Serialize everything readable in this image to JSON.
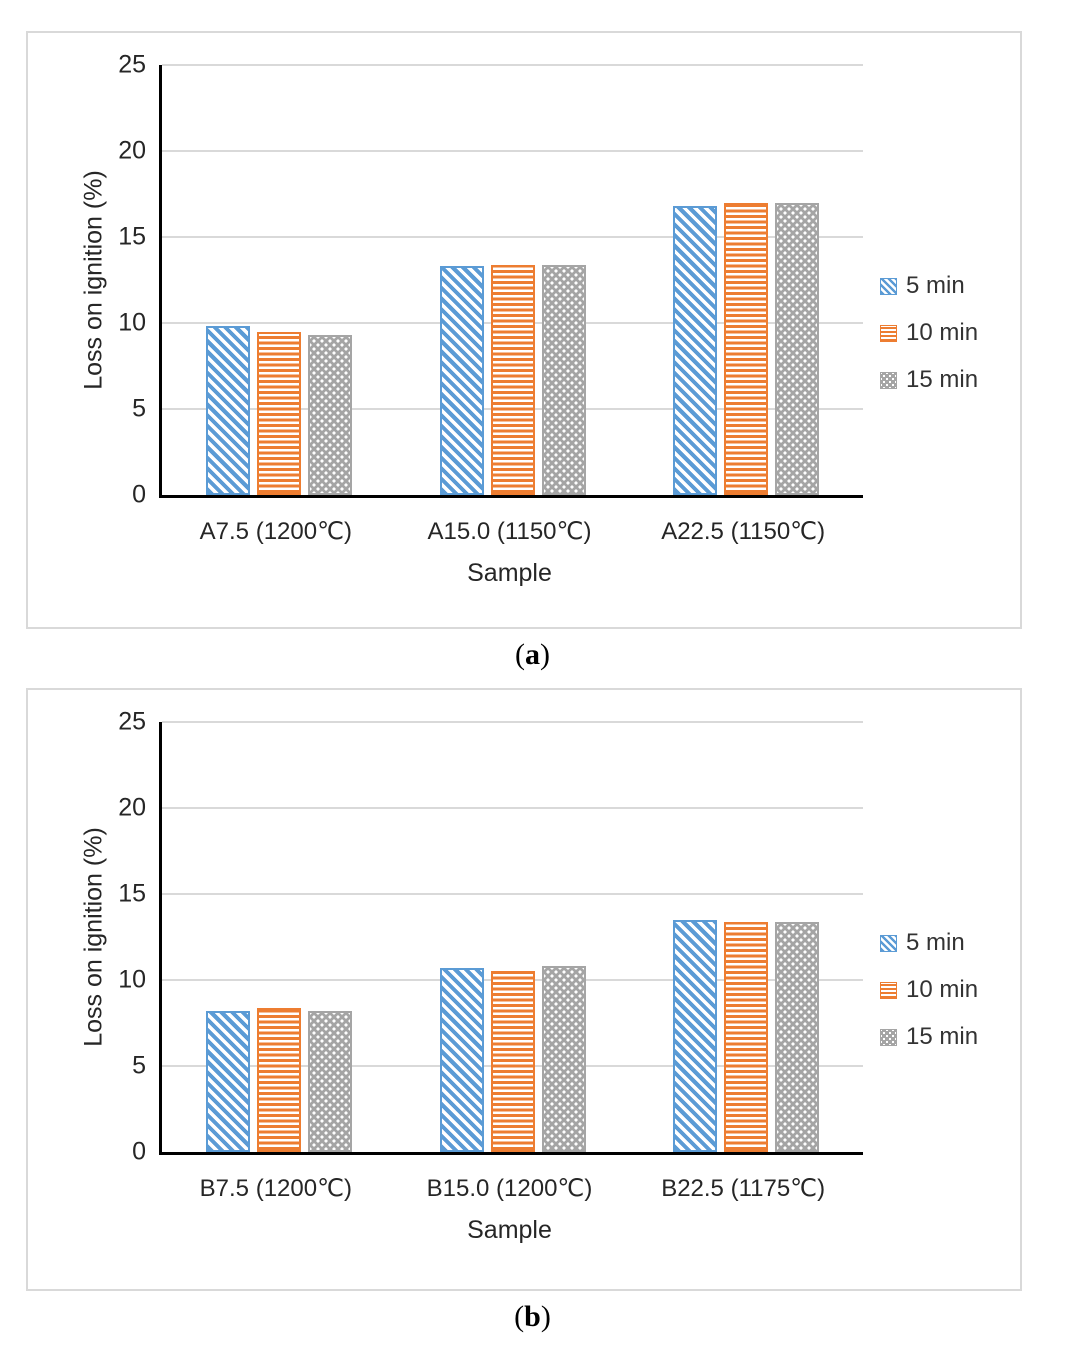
{
  "styles": {
    "series_colors": [
      "#5B9BD5",
      "#ED7D31",
      "#A5A5A5"
    ],
    "series_patterns": [
      "diagonal-stripes",
      "horizontal-stripes",
      "checker-dots"
    ],
    "grid_color": "#D9D9D9",
    "axis_color": "#000000",
    "text_color": "#262626",
    "panel_border_color": "#D9D9D9",
    "background": "#FFFFFF"
  },
  "captions": {
    "open": "(",
    "a": "a",
    "b": "b",
    "close": ")"
  },
  "chart_data": [
    {
      "type": "bar",
      "panel": "a",
      "title": "",
      "categories": [
        "A7.5 (1200℃)",
        "A15.0 (1150℃)",
        "A22.5 (1150℃)"
      ],
      "series": [
        {
          "name": "5 min",
          "values": [
            9.8,
            13.3,
            16.8
          ]
        },
        {
          "name": "10 min",
          "values": [
            9.5,
            13.4,
            17.0
          ]
        },
        {
          "name": "15 min",
          "values": [
            9.3,
            13.4,
            17.0
          ]
        }
      ],
      "xlabel": "Sample",
      "ylabel": "Loss on ignition  (%)",
      "ylim": [
        0,
        25
      ],
      "ytick_step": 5,
      "grid": true,
      "legend_position": "right"
    },
    {
      "type": "bar",
      "panel": "b",
      "title": "",
      "categories": [
        "B7.5 (1200℃)",
        "B15.0 (1200℃)",
        "B22.5 (1175℃)"
      ],
      "series": [
        {
          "name": "5 min",
          "values": [
            8.2,
            10.7,
            13.5
          ]
        },
        {
          "name": "10 min",
          "values": [
            8.4,
            10.5,
            13.4
          ]
        },
        {
          "name": "15 min",
          "values": [
            8.2,
            10.8,
            13.4
          ]
        }
      ],
      "xlabel": "Sample",
      "ylabel": "Loss on ignition  (%)",
      "ylim": [
        0,
        25
      ],
      "ytick_step": 5,
      "grid": true,
      "legend_position": "right"
    }
  ]
}
